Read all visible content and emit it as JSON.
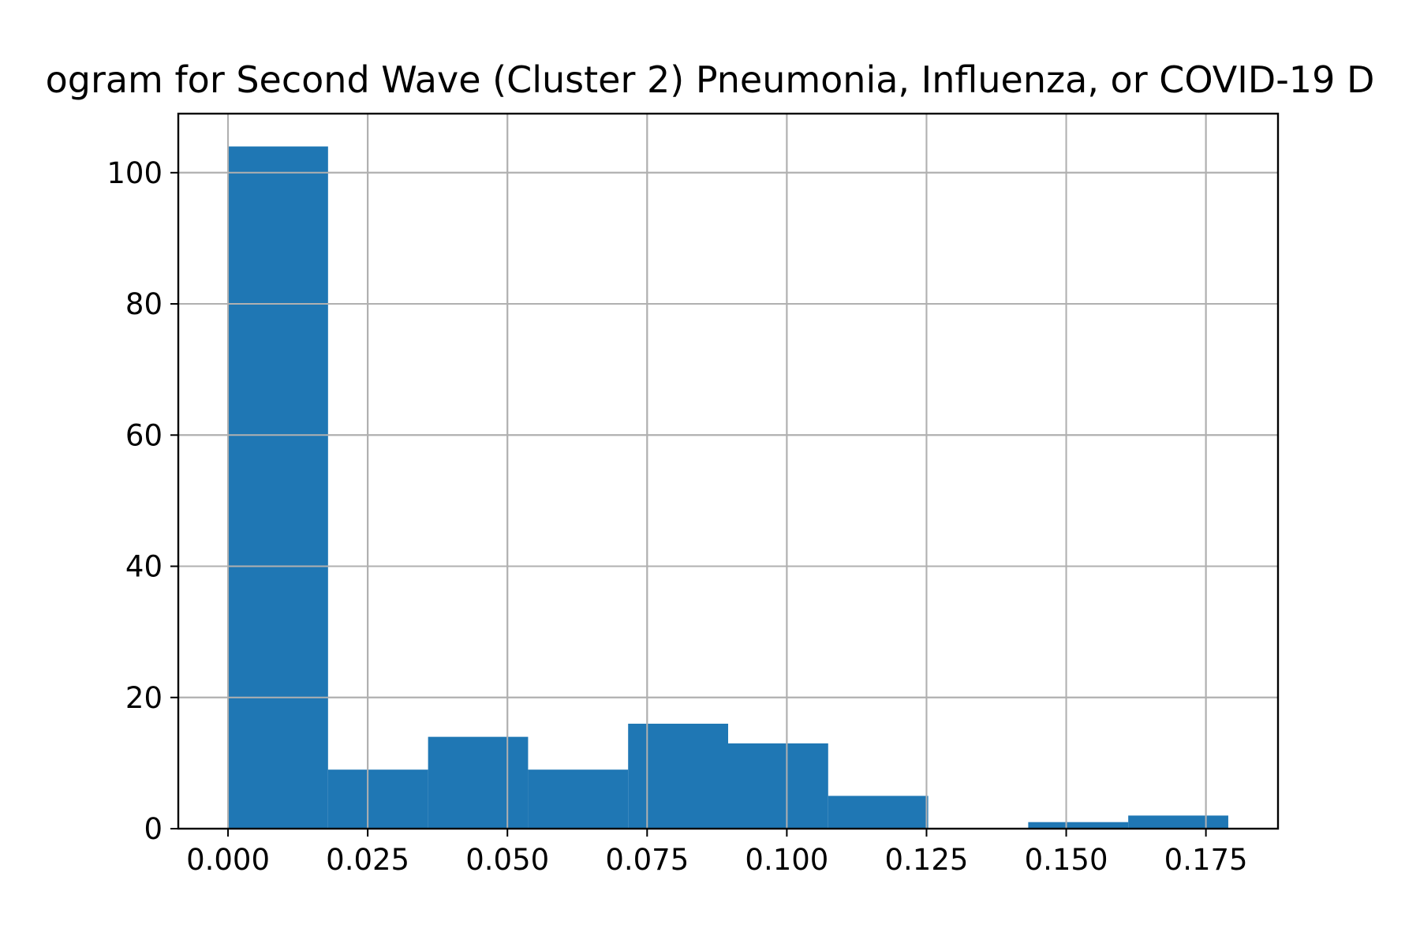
{
  "chart_data": {
    "type": "bar",
    "title": "ogram for Second Wave (Cluster 2) Pneumonia, Influenza, or COVID-19 D",
    "xlabel": "",
    "ylabel": "",
    "bin_edges": [
      0.0,
      0.0179,
      0.0358,
      0.0537,
      0.0716,
      0.0895,
      0.1074,
      0.1253,
      0.1432,
      0.1611,
      0.179
    ],
    "values": [
      104,
      9,
      14,
      9,
      16,
      13,
      5,
      0,
      1,
      2
    ],
    "xlim": [
      -0.0089,
      0.1879
    ],
    "ylim": [
      0,
      109
    ],
    "xticks": [
      0.0,
      0.025,
      0.05,
      0.075,
      0.1,
      0.125,
      0.15,
      0.175
    ],
    "xtick_labels": [
      "0.000",
      "0.025",
      "0.050",
      "0.075",
      "0.100",
      "0.125",
      "0.150",
      "0.175"
    ],
    "yticks": [
      0,
      20,
      40,
      60,
      80,
      100
    ],
    "ytick_labels": [
      "0",
      "20",
      "40",
      "60",
      "80",
      "100"
    ],
    "grid": true,
    "bar_color": "#1f77b4",
    "grid_color": "#b0b0b0"
  }
}
